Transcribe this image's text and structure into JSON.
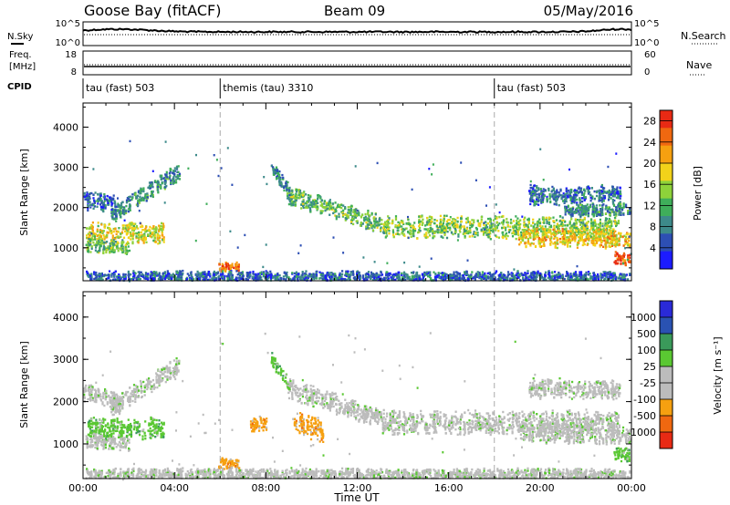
{
  "header": {
    "station": "Goose Bay (fitACF)",
    "beam": "Beam 09",
    "date": "05/May/2016"
  },
  "left_labels": {
    "nsky": "N.Sky",
    "freq": "Freq.",
    "freq_unit": "[MHz]",
    "cpid": "CPID"
  },
  "right_labels": {
    "nsearch": "N.Search",
    "nave": "Nave"
  },
  "noise_axis": {
    "top": "10^5",
    "bottom": "10^0"
  },
  "freq_axis": {
    "left_top": "18",
    "left_bottom": "8",
    "right_top": "60",
    "right_bottom": "0"
  },
  "cpid_segments": [
    {
      "label": "tau (fast) 503",
      "start_hour": 0
    },
    {
      "label": "themis (tau) 3310",
      "start_hour": 6
    },
    {
      "label": "tau (fast) 503",
      "start_hour": 18
    }
  ],
  "colors": {
    "power": [
      "#1c1cff",
      "#2d4fb4",
      "#3d8a8a",
      "#3fae5a",
      "#8ed23a",
      "#f2d21a",
      "#f6a010",
      "#f06810",
      "#e82a14"
    ],
    "velocity": [
      "#2a2ad8",
      "#2a52b2",
      "#3a9a5a",
      "#5ac832",
      "#bcbcbc",
      "#bcbcbc",
      "#f6a010",
      "#f06810",
      "#e82a14"
    ],
    "ground": "#bcbcbc"
  },
  "chart_data": [
    {
      "type": "heatmap",
      "name": "power",
      "xlabel": "",
      "ylabel": "Slant Range [km]",
      "xlim": [
        0,
        24
      ],
      "ylim": [
        180,
        4600
      ],
      "yticks": [
        1000,
        2000,
        3000,
        4000
      ],
      "colorbar": {
        "label": "Power [dB]",
        "ticks": [
          "4",
          "8",
          "12",
          "16",
          "20",
          "24",
          "28"
        ],
        "range": [
          0,
          30
        ]
      },
      "echo_bands": [
        {
          "t0": 0.1,
          "t1": 3.5,
          "r_start": 1350,
          "r_end": 1350,
          "width": 280,
          "level": 18
        },
        {
          "t0": 0.0,
          "t1": 1.6,
          "r_start": 2200,
          "r_end": 2000,
          "width": 260,
          "level": 6
        },
        {
          "t0": 1.2,
          "t1": 4.2,
          "r_start": 1800,
          "r_end": 2900,
          "width": 240,
          "level": 8
        },
        {
          "t0": 0.1,
          "t1": 2.0,
          "r_start": 1050,
          "r_end": 1000,
          "width": 200,
          "level": 12
        },
        {
          "t0": 8.9,
          "t1": 13.0,
          "r_start": 2300,
          "r_end": 1600,
          "width": 260,
          "level": 12
        },
        {
          "t0": 13.0,
          "t1": 23.4,
          "r_start": 1500,
          "r_end": 1500,
          "width": 300,
          "level": 14
        },
        {
          "t0": 19.0,
          "t1": 23.9,
          "r_start": 1250,
          "r_end": 1200,
          "width": 250,
          "level": 20
        },
        {
          "t0": 19.5,
          "t1": 23.5,
          "r_start": 2300,
          "r_end": 2300,
          "width": 260,
          "level": 6
        },
        {
          "t0": 21.0,
          "t1": 23.9,
          "r_start": 1900,
          "r_end": 1950,
          "width": 160,
          "level": 8
        },
        {
          "t0": 23.2,
          "t1": 23.9,
          "r_start": 720,
          "r_end": 720,
          "width": 180,
          "level": 28
        },
        {
          "t0": 5.9,
          "t1": 6.8,
          "r_start": 520,
          "r_end": 520,
          "width": 140,
          "level": 26
        },
        {
          "t0": 0.1,
          "t1": 23.9,
          "r_start": 260,
          "r_end": 260,
          "width": 160,
          "level": 5
        },
        {
          "t0": 8.2,
          "t1": 9.0,
          "r_start": 3000,
          "r_end": 2400,
          "width": 180,
          "level": 8
        }
      ]
    },
    {
      "type": "heatmap",
      "name": "velocity",
      "xlabel": "Time UT",
      "ylabel": "Slant Range [km]",
      "xlim": [
        0,
        24
      ],
      "ylim": [
        180,
        4600
      ],
      "xticks": [
        "00:00",
        "04:00",
        "08:00",
        "12:00",
        "16:00",
        "20:00",
        "00:00"
      ],
      "yticks": [
        1000,
        2000,
        3000,
        4000
      ],
      "colorbar": {
        "label": "Velocity [m s⁻¹]",
        "ticks": [
          "1000",
          "500",
          "100",
          "25",
          "-25",
          "-100",
          "-500",
          "-1000"
        ]
      },
      "echo_bands": [
        {
          "t0": 0.1,
          "t1": 3.5,
          "r_start": 1350,
          "r_end": 1350,
          "width": 280,
          "vclass": 3
        },
        {
          "t0": 0.0,
          "t1": 1.6,
          "r_start": 2200,
          "r_end": 2000,
          "width": 260,
          "vclass": 4
        },
        {
          "t0": 1.2,
          "t1": 4.2,
          "r_start": 1800,
          "r_end": 2900,
          "width": 240,
          "vclass": 4
        },
        {
          "t0": 0.1,
          "t1": 2.0,
          "r_start": 1050,
          "r_end": 1000,
          "width": 200,
          "vclass": 4
        },
        {
          "t0": 8.9,
          "t1": 13.0,
          "r_start": 2300,
          "r_end": 1600,
          "width": 260,
          "vclass": 4
        },
        {
          "t0": 9.2,
          "t1": 10.5,
          "r_start": 1500,
          "r_end": 1300,
          "width": 300,
          "vclass": 6
        },
        {
          "t0": 13.0,
          "t1": 23.4,
          "r_start": 1500,
          "r_end": 1500,
          "width": 300,
          "vclass": 4
        },
        {
          "t0": 19.0,
          "t1": 23.9,
          "r_start": 1250,
          "r_end": 1200,
          "width": 250,
          "vclass": 4
        },
        {
          "t0": 19.5,
          "t1": 23.5,
          "r_start": 2300,
          "r_end": 2300,
          "width": 260,
          "vclass": 4
        },
        {
          "t0": 23.2,
          "t1": 23.9,
          "r_start": 720,
          "r_end": 720,
          "width": 180,
          "vclass": 3
        },
        {
          "t0": 5.9,
          "t1": 6.8,
          "r_start": 520,
          "r_end": 520,
          "width": 140,
          "vclass": 6
        },
        {
          "t0": 7.3,
          "t1": 8.0,
          "r_start": 1400,
          "r_end": 1500,
          "width": 200,
          "vclass": 6
        },
        {
          "t0": 0.1,
          "t1": 23.9,
          "r_start": 260,
          "r_end": 260,
          "width": 160,
          "vclass": 4
        },
        {
          "t0": 8.2,
          "t1": 9.0,
          "r_start": 3000,
          "r_end": 2400,
          "width": 180,
          "vclass": 3
        }
      ]
    }
  ]
}
